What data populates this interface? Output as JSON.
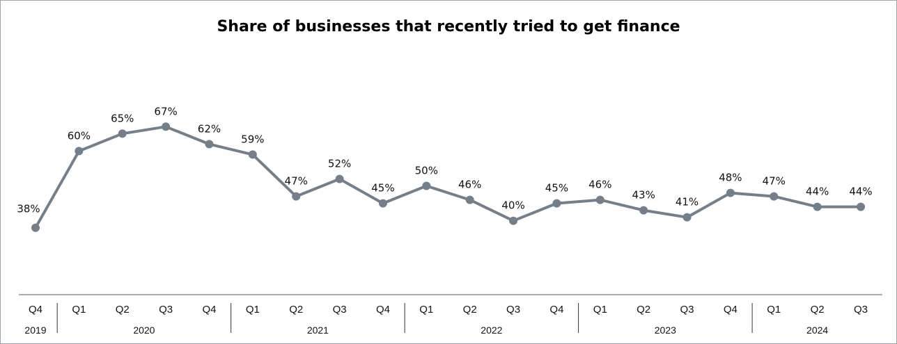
{
  "chart_data": {
    "type": "line",
    "title": "Share of businesses that recently tried to get finance",
    "categories": [
      "Q4",
      "Q1",
      "Q2",
      "Q3",
      "Q4",
      "Q1",
      "Q2",
      "Q3",
      "Q4",
      "Q1",
      "Q2",
      "Q3",
      "Q4",
      "Q1",
      "Q2",
      "Q3",
      "Q4",
      "Q1",
      "Q2",
      "Q3"
    ],
    "years": [
      {
        "label": "2019",
        "start": 0,
        "end": 0
      },
      {
        "label": "2020",
        "start": 1,
        "end": 4
      },
      {
        "label": "2021",
        "start": 5,
        "end": 8
      },
      {
        "label": "2022",
        "start": 9,
        "end": 12
      },
      {
        "label": "2023",
        "start": 13,
        "end": 16
      },
      {
        "label": "2024",
        "start": 17,
        "end": 19
      }
    ],
    "series": [
      {
        "values": [
          38,
          60,
          65,
          67,
          62,
          59,
          47,
          52,
          45,
          50,
          46,
          40,
          45,
          46,
          43,
          41,
          48,
          47,
          44,
          44
        ],
        "labels": [
          "38%",
          "60%",
          "65%",
          "67%",
          "62%",
          "59%",
          "47%",
          "52%",
          "45%",
          "50%",
          "46%",
          "40%",
          "45%",
          "46%",
          "43%",
          "41%",
          "48%",
          "47%",
          "44%",
          "44%"
        ],
        "color": "#737f8b"
      }
    ],
    "ylim": [
      20,
      85
    ],
    "grid": false,
    "legend": "none"
  }
}
